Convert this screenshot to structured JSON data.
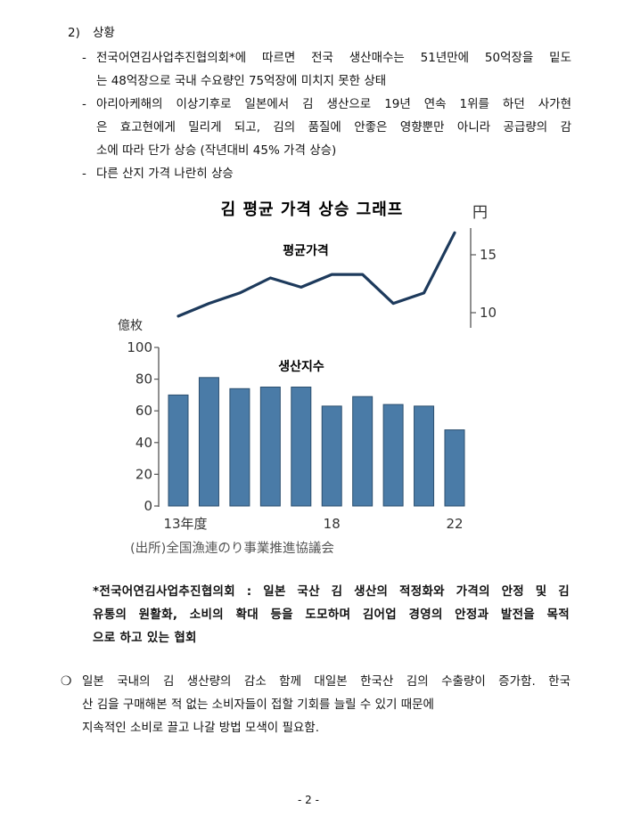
{
  "section": {
    "number": "2)",
    "title": "상황"
  },
  "bullets": [
    {
      "dash": "-",
      "lines": [
        "전국어연김사업추진협의회*에 따르면 전국 생산매수는 51년만에 50억장을 밑도",
        "는 48억장으로 국내 수요량인 75억장에 미치지 못한 상태"
      ]
    },
    {
      "dash": "-",
      "lines": [
        "아리아케해의 이상기후로 일본에서 김 생산으로 19년 연속 1위를 하던 사가현",
        "은 효고현에게 밀리게 되고, 김의 품질에 안좋은 영향뿐만 아니라 공급량의 감",
        "소에 따라 단가 상승 (작년대비 45% 가격 상승)"
      ]
    },
    {
      "dash": "-",
      "lines": [
        "다른 산지 가격 나란히 상승"
      ]
    }
  ],
  "chart_data": {
    "type": "bar+line",
    "title": "김 평균 가격 상승 그래프",
    "x": [
      13,
      14,
      15,
      16,
      17,
      18,
      19,
      20,
      21,
      22
    ],
    "x_tick_labels": [
      "13年度",
      "18",
      "22"
    ],
    "x_tick_positions": [
      13,
      18,
      22
    ],
    "price": {
      "label": "평균가격",
      "unit": "円",
      "values": [
        9.7,
        10.8,
        11.7,
        13.0,
        12.2,
        13.3,
        13.3,
        10.8,
        11.7,
        16.9
      ],
      "ticks": [
        10,
        15
      ]
    },
    "production": {
      "label": "생산지수",
      "unit": "億枚",
      "values": [
        70,
        81,
        74,
        75,
        75,
        63,
        69,
        64,
        63,
        48
      ],
      "ylim": [
        0,
        100
      ],
      "ticks": [
        0,
        20,
        40,
        60,
        80,
        100
      ]
    },
    "source": "(出所)全国漁連のり事業推進協議会",
    "colors": {
      "bar_fill": "#4a7ba7",
      "bar_stroke": "#2c4f6f",
      "line": "#1d3a5c"
    }
  },
  "footnote": [
    "*전국어연김사업추진협의회 : 일본 국산 김 생산의 적정화와 가격의 안정 및 김",
    "유통의 원활화, 소비의 확대 등을 도모하며 김어업 경영의 안정과 발전을 목적",
    "으로 하고 있는 협회"
  ],
  "conclusion": {
    "marker": "❍",
    "lines": [
      "일본 국내의 김 생산량의 감소 함께 대일본 한국산 김의 수출량이 증가함. 한국",
      "산 김을 구매해본 적 없는 소비자들이 접할 기회를 늘릴 수 있기 때문에",
      "지속적인 소비로 끌고 나갈 방법 모색이 필요함."
    ]
  },
  "page_number": "- 2 -"
}
